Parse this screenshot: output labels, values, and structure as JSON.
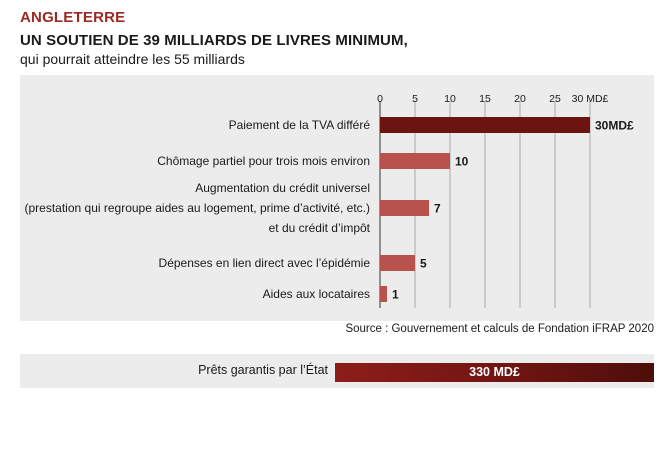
{
  "header": {
    "kicker": "ANGLETERRE",
    "title": "UN SOUTIEN DE 39 MILLIARDS DE LIVRES MINIMUM,",
    "subtitle": "qui pourrait atteindre les 55 milliards"
  },
  "chart_data": {
    "type": "bar",
    "orientation": "horizontal",
    "title": "",
    "xlabel": "",
    "ylabel": "",
    "unit": "MD£",
    "xlim": [
      0,
      35
    ],
    "ticks": [
      0,
      5,
      10,
      15,
      20,
      25,
      30
    ],
    "tick_labels": [
      "0",
      "5",
      "10",
      "15",
      "20",
      "25",
      "30 MD£"
    ],
    "grid": true,
    "categories": [
      [
        "Paiement de la TVA différé"
      ],
      [
        "Chômage partiel pour trois mois environ"
      ],
      [
        "Augmentation du crédit universel",
        "(prestation qui regroupe aides au logement, prime d’activité, etc.)",
        "et du crédit d’impôt"
      ],
      [
        "Dépenses en lien direct avec l’épidémie"
      ],
      [
        "Aides aux locataires"
      ]
    ],
    "values": [
      30,
      10,
      7,
      5,
      1
    ],
    "value_labels": [
      "30MD£",
      "10",
      "7",
      "5",
      "1"
    ],
    "colors": {
      "highlight": "#6b1410",
      "bar": "#b7524c",
      "panel": "#ececec",
      "grid": "#9a9a9a"
    }
  },
  "source": "Source : Gouvernement et calculs de Fondation iFRAP 2020",
  "loan": {
    "label": "Prêts garantis par l’État",
    "value": "330 MD£"
  }
}
